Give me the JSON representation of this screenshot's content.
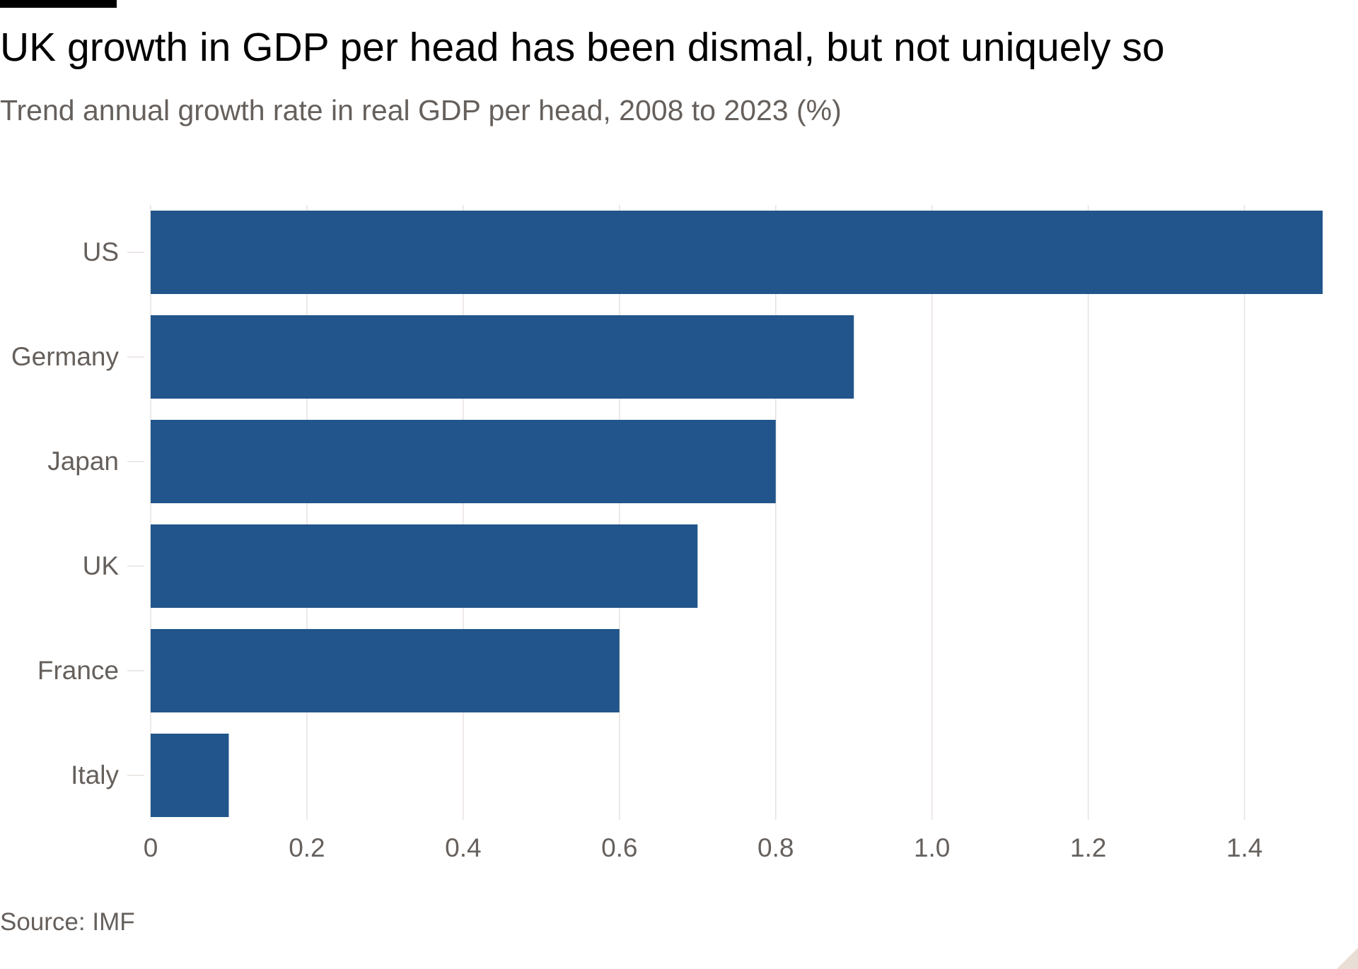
{
  "header": {
    "title": "UK growth in GDP per head has been dismal, but not uniquely so",
    "subtitle": "Trend annual growth rate in real GDP per head, 2008 to 2023 (%)"
  },
  "footer": {
    "source": "Source: IMF"
  },
  "colors": {
    "bar": "#21558b",
    "grid": "#e7e2df",
    "axis_text": "#66605c",
    "title_text": "#000000"
  },
  "chart_data": {
    "type": "bar",
    "orientation": "horizontal",
    "title": "UK growth in GDP per head has been dismal, but not uniquely so",
    "subtitle": "Trend annual growth rate in real GDP per head, 2008 to 2023 (%)",
    "categories": [
      "US",
      "Germany",
      "Japan",
      "UK",
      "France",
      "Italy"
    ],
    "values": [
      1.5,
      0.9,
      0.8,
      0.7,
      0.6,
      0.1
    ],
    "xlim": [
      0,
      1.5
    ],
    "x_ticks": [
      0,
      0.2,
      0.4,
      0.6,
      0.8,
      1.0,
      1.2,
      1.4
    ],
    "x_tick_labels": [
      "0",
      "0.2",
      "0.4",
      "0.6",
      "0.8",
      "1.0",
      "1.2",
      "1.4"
    ],
    "xlabel": "",
    "ylabel": "",
    "grid": true,
    "legend": "none",
    "source": "Source: IMF"
  }
}
